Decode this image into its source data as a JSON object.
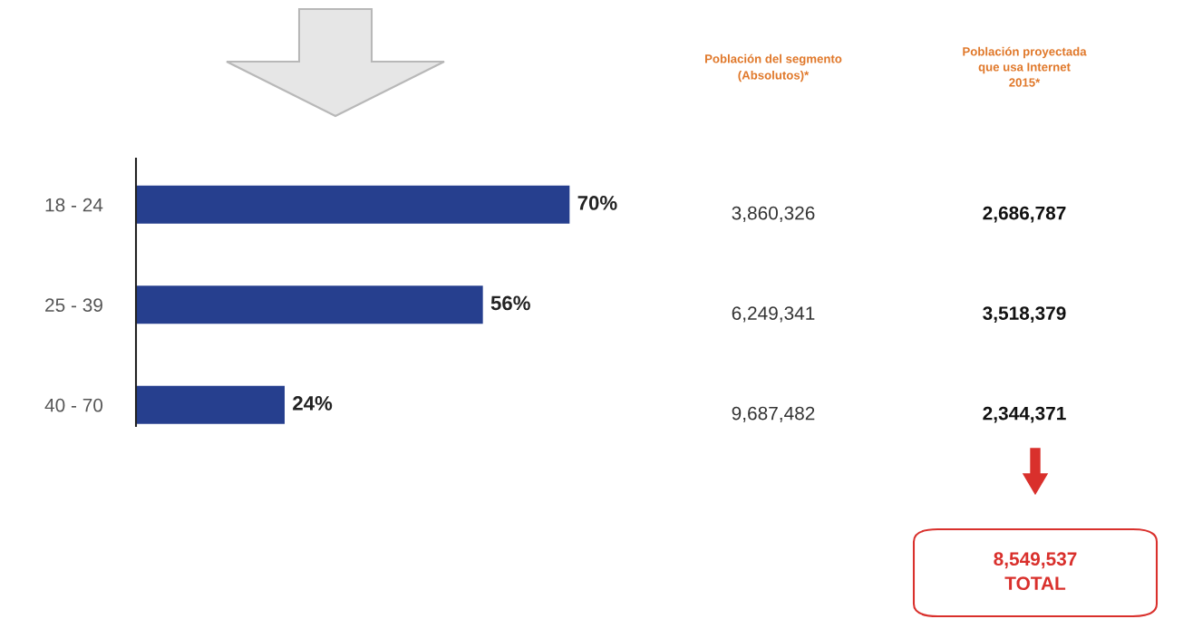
{
  "chart_data": {
    "type": "bar",
    "orientation": "horizontal",
    "categories": [
      "18 - 24",
      "25 - 39",
      "40 - 70"
    ],
    "values": [
      70,
      56,
      24
    ],
    "value_labels": [
      "70%",
      "56%",
      "24%"
    ],
    "color": "#263f8e",
    "annotations": [
      "Población del segmento\n(Absolutos)*",
      "Población proyectada\nque usa Internet\n2015*",
      "3,860,326",
      "6,249,341",
      "9,687,482",
      "2,686,787",
      "3,518,379",
      "2,344,371",
      "8,549,537\nTOTAL"
    ]
  }
}
